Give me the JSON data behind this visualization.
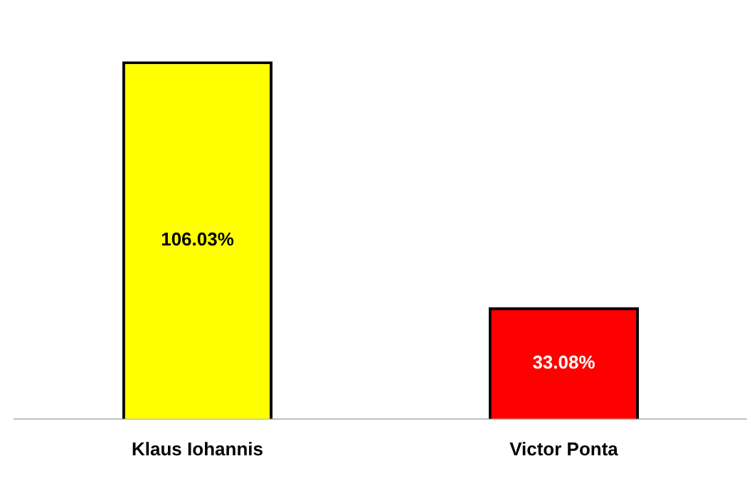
{
  "chart_data": {
    "type": "bar",
    "categories": [
      "Klaus Iohannis",
      "Victor Ponta"
    ],
    "values": [
      106.03,
      33.08
    ],
    "value_labels": [
      "106.03%",
      "33.08%"
    ],
    "colors": [
      "#ffff00",
      "#ff0000"
    ],
    "grid": false,
    "legend": false
  }
}
